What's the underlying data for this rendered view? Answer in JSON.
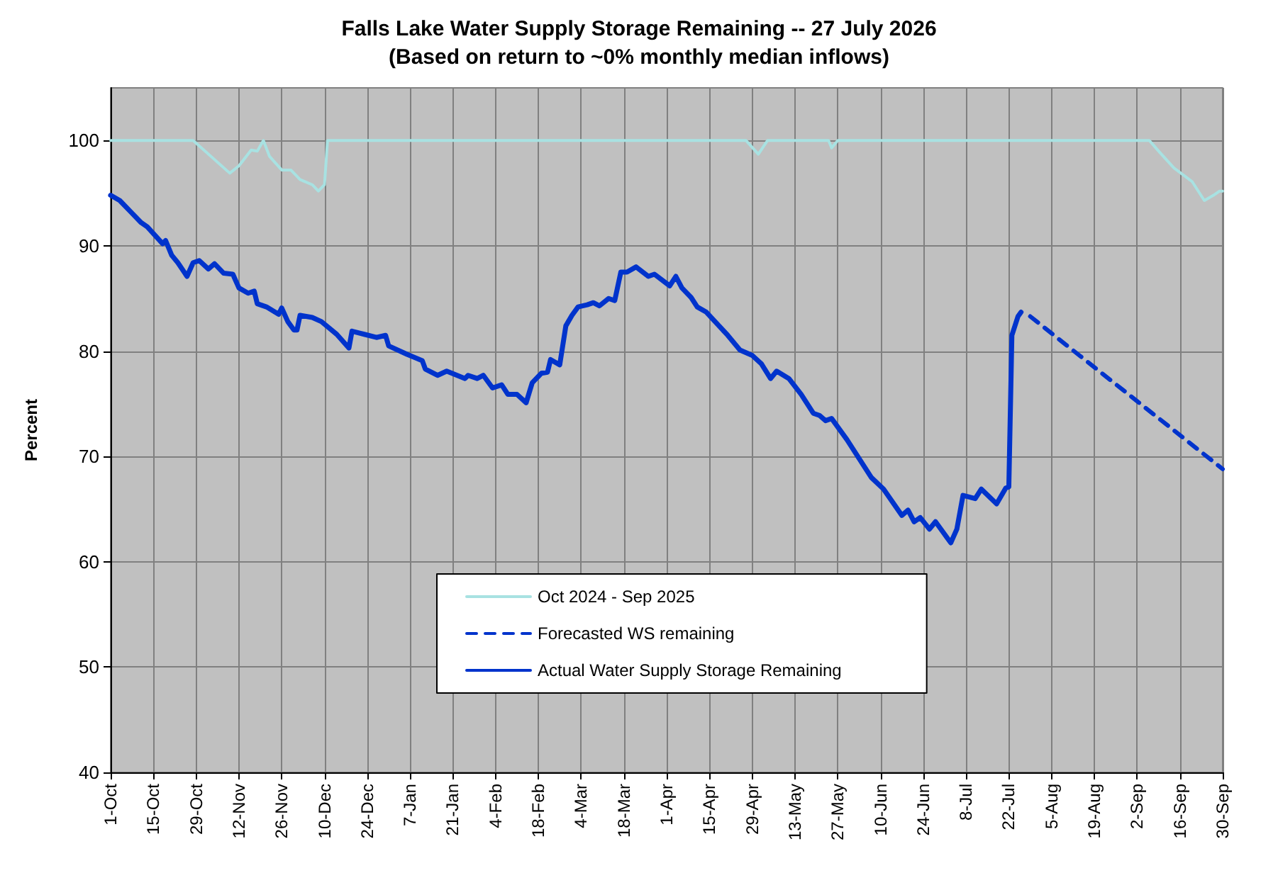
{
  "chart_data": {
    "type": "line",
    "title": "Falls Lake Water Supply Storage Remaining -- 27 July 2026",
    "subtitle": "(Based on return to ~0% monthly median inflows)",
    "ylabel": "Percent",
    "xlim": [
      "2025-10-01",
      "2026-09-30"
    ],
    "ylim": [
      40,
      105
    ],
    "yticks": [
      40,
      50,
      60,
      70,
      80,
      90,
      100
    ],
    "xticks": [
      {
        "value": "2025-10-01",
        "label": "1-Oct"
      },
      {
        "value": "2025-10-15",
        "label": "15-Oct"
      },
      {
        "value": "2025-10-29",
        "label": "29-Oct"
      },
      {
        "value": "2025-11-12",
        "label": "12-Nov"
      },
      {
        "value": "2025-11-26",
        "label": "26-Nov"
      },
      {
        "value": "2025-12-10",
        "label": "10-Dec"
      },
      {
        "value": "2025-12-24",
        "label": "24-Dec"
      },
      {
        "value": "2026-01-07",
        "label": "7-Jan"
      },
      {
        "value": "2026-01-21",
        "label": "21-Jan"
      },
      {
        "value": "2026-02-04",
        "label": "4-Feb"
      },
      {
        "value": "2026-02-18",
        "label": "18-Feb"
      },
      {
        "value": "2026-03-04",
        "label": "4-Mar"
      },
      {
        "value": "2026-03-18",
        "label": "18-Mar"
      },
      {
        "value": "2026-04-01",
        "label": "1-Apr"
      },
      {
        "value": "2026-04-15",
        "label": "15-Apr"
      },
      {
        "value": "2026-04-29",
        "label": "29-Apr"
      },
      {
        "value": "2026-05-13",
        "label": "13-May"
      },
      {
        "value": "2026-05-27",
        "label": "27-May"
      },
      {
        "value": "2026-06-10",
        "label": "10-Jun"
      },
      {
        "value": "2026-06-24",
        "label": "24-Jun"
      },
      {
        "value": "2026-07-08",
        "label": "8-Jul"
      },
      {
        "value": "2026-07-22",
        "label": "22-Jul"
      },
      {
        "value": "2026-08-05",
        "label": "5-Aug"
      },
      {
        "value": "2026-08-19",
        "label": "19-Aug"
      },
      {
        "value": "2026-09-02",
        "label": "2-Sep"
      },
      {
        "value": "2026-09-16",
        "label": "16-Sep"
      },
      {
        "value": "2026-09-30",
        "label": "30-Sep"
      }
    ],
    "grid": true,
    "legend": "bottom",
    "marker": "none",
    "series": [
      {
        "name": "Oct 2024 - Sep 2025",
        "color": "#a8e2e2",
        "line_style": "solid",
        "x": [
          "2025-10-01",
          "2025-10-28",
          "2025-11-09",
          "2025-11-12",
          "2025-11-16",
          "2025-11-18",
          "2025-11-20",
          "2025-11-22",
          "2025-11-26",
          "2025-11-29",
          "2025-12-02",
          "2025-12-06",
          "2025-12-08",
          "2025-12-10",
          "2025-12-11",
          "2026-04-27",
          "2026-05-01",
          "2026-05-04",
          "2026-05-24",
          "2026-05-25",
          "2026-05-27",
          "2026-09-06",
          "2026-09-09",
          "2026-09-14",
          "2026-09-20",
          "2026-09-24",
          "2026-09-27",
          "2026-09-29",
          "2026-09-30"
        ],
        "values": [
          100,
          100,
          96.9,
          97.6,
          99.1,
          99.0,
          100,
          98.5,
          97.2,
          97.2,
          96.3,
          95.8,
          95.2,
          95.8,
          100,
          100,
          98.7,
          100,
          100,
          99.3,
          100,
          100,
          99.0,
          97.4,
          96.1,
          94.3,
          94.8,
          95.2,
          95.2
        ]
      },
      {
        "name": "Forecasted WS remaining",
        "color": "#0033cc",
        "line_style": "dashed",
        "x": [
          "2026-07-29",
          "2026-09-30"
        ],
        "values": [
          83.3,
          68.8
        ]
      },
      {
        "name": "Actual Water Supply Storage Remaining",
        "color": "#0033cc",
        "line_style": "solid",
        "x": [
          "2025-10-01",
          "2025-10-04",
          "2025-10-08",
          "2025-10-11",
          "2025-10-13",
          "2025-10-18",
          "2025-10-19",
          "2025-10-21",
          "2025-10-23",
          "2025-10-26",
          "2025-10-28",
          "2025-10-30",
          "2025-11-02",
          "2025-11-04",
          "2025-11-07",
          "2025-11-10",
          "2025-11-12",
          "2025-11-15",
          "2025-11-17",
          "2025-11-18",
          "2025-11-21",
          "2025-11-25",
          "2025-11-26",
          "2025-11-28",
          "2025-11-30",
          "2025-12-01",
          "2025-12-02",
          "2025-12-06",
          "2025-12-09",
          "2025-12-14",
          "2025-12-18",
          "2025-12-19",
          "2025-12-23",
          "2025-12-27",
          "2025-12-30",
          "2025-12-31",
          "2026-01-06",
          "2026-01-11",
          "2026-01-12",
          "2026-01-16",
          "2026-01-19",
          "2026-01-25",
          "2026-01-26",
          "2026-01-29",
          "2026-01-31",
          "2026-02-03",
          "2026-02-06",
          "2026-02-08",
          "2026-02-11",
          "2026-02-14",
          "2026-02-16",
          "2026-02-19",
          "2026-02-21",
          "2026-02-22",
          "2026-02-25",
          "2026-02-27",
          "2026-03-01",
          "2026-03-03",
          "2026-03-06",
          "2026-03-08",
          "2026-03-10",
          "2026-03-13",
          "2026-03-15",
          "2026-03-17",
          "2026-03-19",
          "2026-03-22",
          "2026-03-26",
          "2026-03-28",
          "2026-04-02",
          "2026-04-04",
          "2026-04-06",
          "2026-04-09",
          "2026-04-11",
          "2026-04-14",
          "2026-04-21",
          "2026-04-25",
          "2026-04-29",
          "2026-05-02",
          "2026-05-05",
          "2026-05-07",
          "2026-05-11",
          "2026-05-15",
          "2026-05-19",
          "2026-05-21",
          "2026-05-23",
          "2026-05-25",
          "2026-05-30",
          "2026-06-07",
          "2026-06-11",
          "2026-06-17",
          "2026-06-19",
          "2026-06-21",
          "2026-06-23",
          "2026-06-26",
          "2026-06-28",
          "2026-07-03",
          "2026-07-05",
          "2026-07-07",
          "2026-07-11",
          "2026-07-13",
          "2026-07-18",
          "2026-07-21",
          "2026-07-22",
          "2026-07-23",
          "2026-07-25",
          "2026-07-26"
        ],
        "values": [
          94.8,
          94.3,
          93.1,
          92.2,
          91.8,
          90.2,
          90.5,
          89.1,
          88.4,
          87.1,
          88.4,
          88.6,
          87.8,
          88.3,
          87.4,
          87.3,
          86.0,
          85.5,
          85.7,
          84.5,
          84.2,
          83.5,
          84.1,
          82.8,
          82.0,
          82.0,
          83.4,
          83.2,
          82.8,
          81.6,
          80.3,
          81.9,
          81.6,
          81.3,
          81.5,
          80.5,
          79.7,
          79.1,
          78.3,
          77.7,
          78.1,
          77.4,
          77.7,
          77.4,
          77.7,
          76.5,
          76.8,
          75.9,
          75.9,
          75.1,
          77.0,
          77.9,
          78.0,
          79.2,
          78.7,
          82.4,
          83.4,
          84.2,
          84.4,
          84.6,
          84.3,
          85.0,
          84.8,
          87.5,
          87.5,
          88.0,
          87.1,
          87.3,
          86.2,
          87.1,
          86.0,
          85.1,
          84.2,
          83.7,
          81.5,
          80.1,
          79.6,
          78.8,
          77.4,
          78.1,
          77.4,
          75.9,
          74.1,
          73.9,
          73.4,
          73.6,
          71.6,
          68.0,
          66.9,
          64.4,
          64.9,
          63.8,
          64.2,
          63.1,
          63.8,
          61.8,
          63.1,
          66.3,
          66.0,
          66.9,
          65.5,
          67.0,
          67.1,
          81.5,
          83.3,
          83.7
        ]
      }
    ]
  }
}
